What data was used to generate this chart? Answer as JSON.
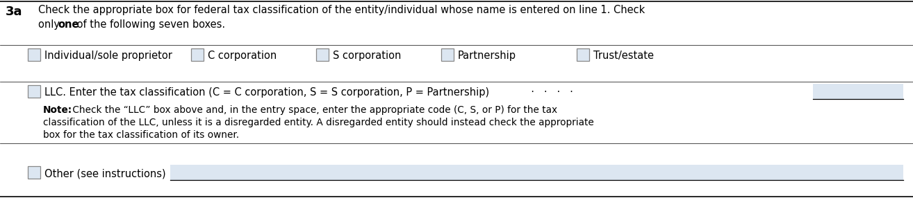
{
  "background_color": "#ffffff",
  "box_fill": "#dce6f1",
  "label_3a": "3a",
  "header_line1": "Check the appropriate box for federal tax classification of the entity/individual whose name is entered on line 1. Check",
  "header_line2_pre": "only ",
  "header_line2_bold": "one",
  "header_line2_post": " of the following seven boxes.",
  "checkboxes_row1": [
    "Individual/sole proprietor",
    "C corporation",
    "S corporation",
    "Partnership",
    "Trust/estate"
  ],
  "cb_row1_x": [
    40,
    275,
    455,
    635,
    830
  ],
  "llc_label": "LLC. Enter the tax classification (C = C corporation, S = S corporation, P = Partnership)",
  "llc_dots": "  ·   ·   ·   ·",
  "note_bold": "Note:",
  "note_line1": " Check the “LLC” box above and, in the entry space, enter the appropriate code (C, S, or P) for the tax",
  "note_line2": "classification of the LLC, unless it is a disregarded entity. A disregarded entity should instead check the appropriate",
  "note_line3": "box for the tax classification of its owner.",
  "other_label": "Other (see instructions)",
  "font_size_header": 10.5,
  "font_size_items": 10.5,
  "font_size_note": 9.8,
  "font_size_3a": 13,
  "input_box_color": "#dce6f1",
  "other_input_color": "#dce6f1"
}
